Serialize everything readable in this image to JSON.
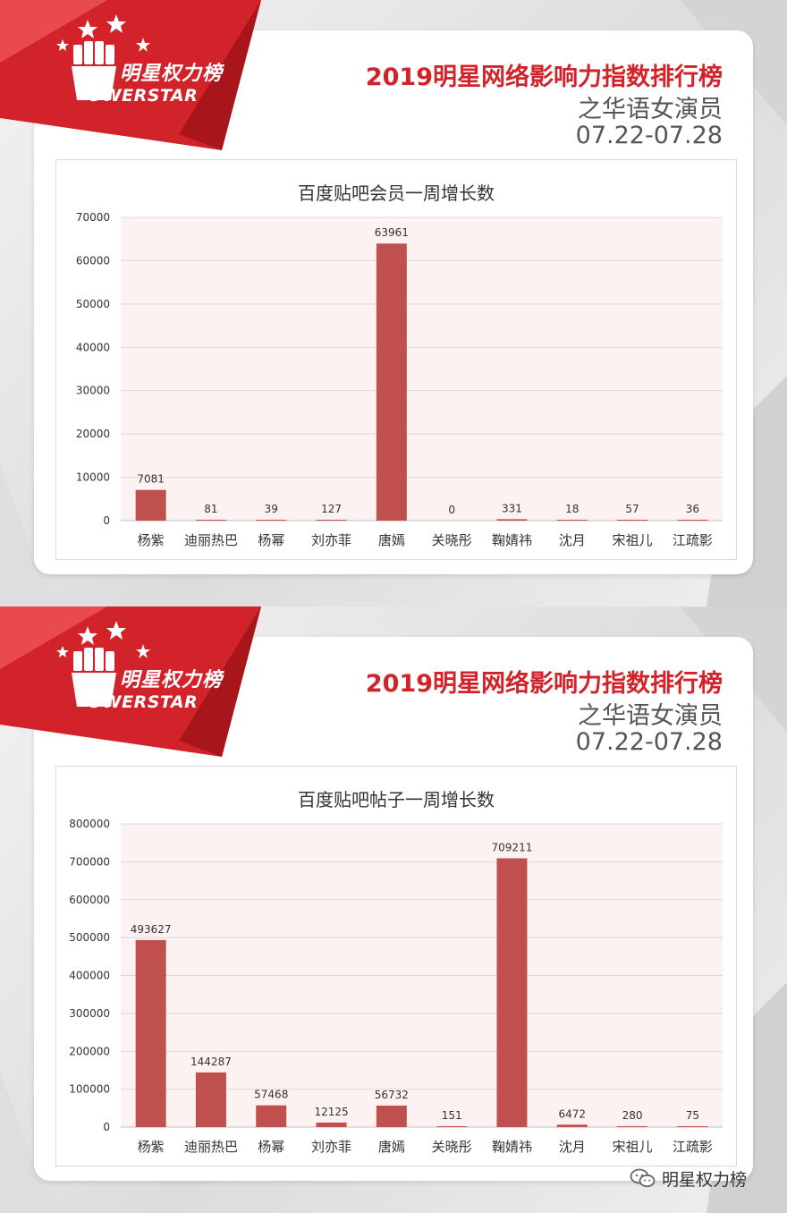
{
  "header": {
    "logo_cn": "明星权力榜",
    "logo_en": "OWERSTAR",
    "title": "2019明星网络影响力指数排行榜",
    "subtitle": "之华语女演员",
    "date_range": "07.22-07.28"
  },
  "colors": {
    "bar": "#c0504d",
    "title": "#d2232a",
    "banner": "#d2232a"
  },
  "chart_data": [
    {
      "type": "bar",
      "title": "百度贴吧会员一周增长数",
      "categories": [
        "杨紫",
        "迪丽热巴",
        "杨幂",
        "刘亦菲",
        "唐嫣",
        "关晓彤",
        "鞠婧祎",
        "沈月",
        "宋祖儿",
        "江疏影"
      ],
      "values": [
        7081,
        81,
        39,
        127,
        63961,
        0,
        331,
        18,
        57,
        36
      ],
      "value_labels": [
        "7081",
        "81",
        "39",
        "127",
        "63961",
        "0",
        "331",
        "18",
        "57",
        "36"
      ],
      "ylim": [
        0,
        70000
      ],
      "yticks": [
        0,
        10000,
        20000,
        30000,
        40000,
        50000,
        60000,
        70000
      ],
      "grid": true,
      "legend": false
    },
    {
      "type": "bar",
      "title": "百度贴吧帖子一周增长数",
      "categories": [
        "杨紫",
        "迪丽热巴",
        "杨幂",
        "刘亦菲",
        "唐嫣",
        "关晓彤",
        "鞠婧祎",
        "沈月",
        "宋祖儿",
        "江疏影"
      ],
      "values": [
        493627,
        144287,
        57468,
        12125,
        56732,
        151,
        709211,
        6472,
        280,
        75
      ],
      "value_labels": [
        "493627",
        "144287",
        "57468",
        "12125",
        "56732",
        "151",
        "709211",
        "6472",
        "280",
        "75"
      ],
      "ylim": [
        0,
        800000
      ],
      "yticks": [
        0,
        100000,
        200000,
        300000,
        400000,
        500000,
        600000,
        700000,
        800000
      ],
      "grid": true,
      "legend": false
    }
  ],
  "footer": {
    "wechat_icon": "wechat-icon",
    "account_name": "明星权力榜"
  }
}
